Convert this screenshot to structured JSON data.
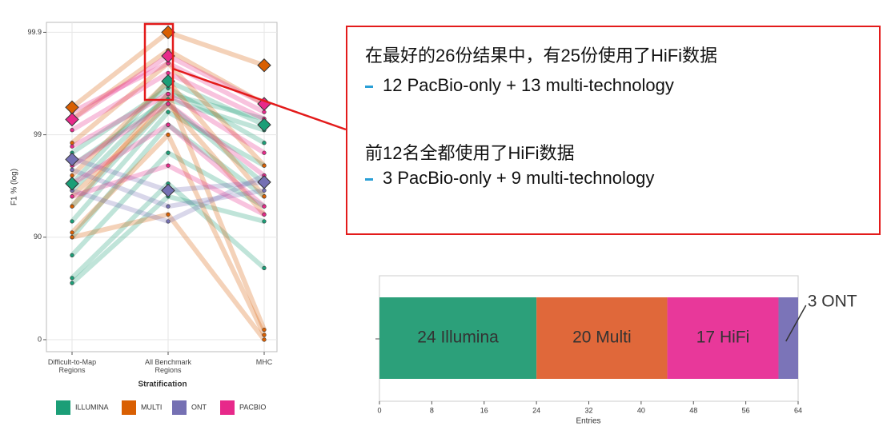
{
  "chart_data": [
    {
      "type": "line",
      "log_scale": true,
      "grid": true,
      "ylabel": "F1 % (log)",
      "xlabel": "Stratification",
      "categories": [
        "Difficult-to-Map Regions",
        "All Benchmark Regions",
        "MHC"
      ],
      "ylim": [
        -31,
        99.92
      ],
      "yticks": [
        0,
        90,
        99,
        99.9
      ],
      "series": [
        {
          "name": "ILLUMINA",
          "color": "#1b9e77",
          "medians": [
            97,
            99.7,
            99.2
          ],
          "values": [
            [
              97,
              99.7,
              99.2
            ],
            [
              96.5,
              99.6,
              99.3
            ],
            [
              98.5,
              99.65,
              98.8
            ],
            [
              95,
              99.5,
              97
            ],
            [
              93,
              99.4,
              98
            ],
            [
              90,
              99.2,
              96
            ],
            [
              85,
              98.5,
              95
            ],
            [
              75,
              97,
              80
            ],
            [
              72,
              96,
              93
            ],
            [
              98,
              99.55,
              99.1
            ]
          ]
        },
        {
          "name": "MULTI",
          "color": "#d95f02",
          "medians": [
            99.46,
            99.9,
            99.79
          ],
          "values": [
            [
              99.46,
              99.9,
              99.79
            ],
            [
              99.3,
              99.85,
              99.5
            ],
            [
              98.8,
              99.8,
              98
            ],
            [
              97.5,
              99.7,
              96
            ],
            [
              95,
              99.6,
              20
            ],
            [
              90,
              94,
              0
            ],
            [
              91,
              99,
              10
            ],
            [
              96,
              99.5,
              94
            ]
          ]
        },
        {
          "name": "ONT",
          "color": "#7570b3",
          "medians": [
            98.26,
            96.5,
            97.1
          ],
          "values": [
            [
              98.3,
              96.5,
              97.1
            ],
            [
              97.8,
              95,
              96.5
            ],
            [
              96.5,
              93,
              97.5
            ]
          ]
        },
        {
          "name": "PACBIO",
          "color": "#e7298a",
          "medians": [
            99.29,
            99.83,
            99.5
          ],
          "values": [
            [
              99.29,
              99.83,
              99.5
            ],
            [
              99.1,
              99.75,
              99.3
            ],
            [
              98.7,
              99.6,
              98.5
            ],
            [
              98,
              99.5,
              97.5
            ],
            [
              97,
              99.2,
              95
            ],
            [
              96,
              98,
              94
            ],
            [
              99.4,
              99.8,
              99.4
            ]
          ]
        }
      ]
    },
    {
      "type": "stacked_bar",
      "xlabel": "Entries",
      "values": [
        24,
        20,
        17,
        3
      ],
      "value_labels": [
        "24 Illumina",
        "20 Multi",
        "17 HiFi",
        "3 ONT"
      ],
      "colors": [
        "#2ca07a",
        "#e0683a",
        "#e8389a",
        "#7b74b8"
      ],
      "xlim": [
        0,
        64
      ],
      "xticks": [
        0,
        8,
        16,
        24,
        32,
        40,
        48,
        56,
        64
      ]
    }
  ],
  "callout": {
    "items": [
      {
        "heading": "在最好的26份结果中，有25份使用了HiFi数据",
        "detail": "12 PacBio-only + 13 multi-technology"
      },
      {
        "heading": "前12名全都使用了HiFi数据",
        "detail": "3 PacBio-only + 9 multi-technology"
      }
    ]
  }
}
